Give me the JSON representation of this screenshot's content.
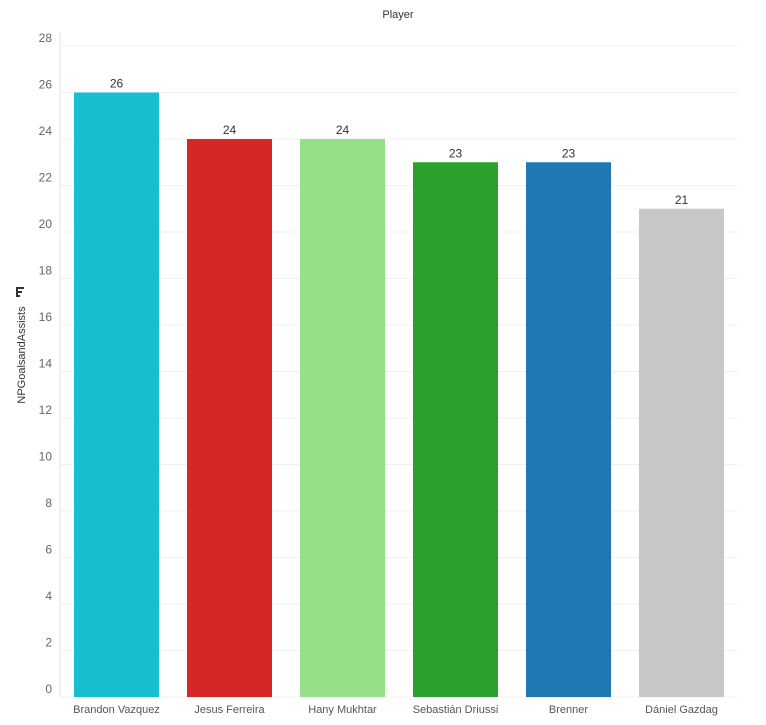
{
  "chart_data": {
    "type": "bar",
    "title": "",
    "xlabel": "Player",
    "ylabel": "NPGoalsandAssists",
    "categories": [
      "Brandon Vazquez",
      "Jesus Ferreira",
      "Hany Mukhtar",
      "Sebastián Driussi",
      "Brenner",
      "Dániel Gazdag"
    ],
    "values": [
      26,
      24,
      24,
      23,
      23,
      21
    ],
    "colors": [
      "#17becf",
      "#d62728",
      "#98df8a",
      "#2ca02c",
      "#1f77b4",
      "#c7c7c7"
    ],
    "ylim": [
      0,
      28
    ],
    "yticks": [
      0,
      2,
      4,
      6,
      8,
      10,
      12,
      14,
      16,
      18,
      20,
      22,
      24,
      26,
      28
    ],
    "grid": true,
    "data_labels": true,
    "legend": "none"
  }
}
